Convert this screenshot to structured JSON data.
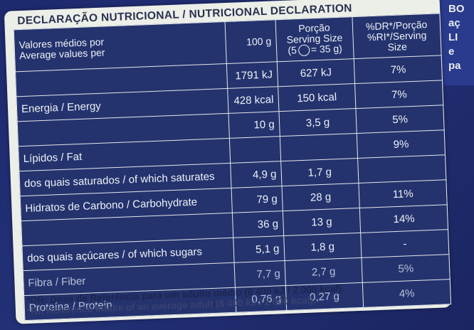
{
  "pack": {
    "side_letters": [
      "BO",
      "aç",
      "LI",
      "e",
      "pa"
    ]
  },
  "panel": {
    "title": "DECLARAÇÃO NUTRICIONAL / NUTRICIONAL DECLARATION",
    "header": {
      "label_line1": "Valores médios por",
      "label_line2": "Average values per",
      "col_100g": "100 g",
      "col_serving_line1": "Porção",
      "col_serving_line2": "Serving Size",
      "col_serving_line3_pre": "(5",
      "col_serving_line3_post": "= 35 g)",
      "col_dr_line1": "%DR*/Porção",
      "col_dr_line2": "%RI*/Serving",
      "col_dr_line3": "Size"
    },
    "rows": [
      {
        "name": "",
        "per100": "1791 kJ",
        "serving": "627 kJ",
        "dr": "7%"
      },
      {
        "name": "Energia / Energy",
        "per100": "428 kcal",
        "serving": "150 kcal",
        "dr": "7%"
      },
      {
        "name": "",
        "per100": "10 g",
        "serving": "3,5 g",
        "dr": "5%"
      },
      {
        "name": "Lípidos / Fat",
        "per100": "",
        "serving": "",
        "dr": "9%"
      },
      {
        "name": "dos quais saturados / of which saturates",
        "per100": "4,9 g",
        "serving": "1,7 g",
        "dr": ""
      },
      {
        "name": "Hidratos de Carbono / Carbohydrate",
        "per100": "79 g",
        "serving": "28 g",
        "dr": "11%"
      },
      {
        "name": "",
        "per100": "36 g",
        "serving": "13 g",
        "dr": "14%"
      },
      {
        "name": "dos quais açúcares / of which sugars",
        "per100": "5,1 g",
        "serving": "1,8 g",
        "dr": "-"
      },
      {
        "name": "Fibra / Fiber",
        "per100": "7,7 g",
        "serving": "2,7 g",
        "dr": "5%"
      },
      {
        "name": "Proteína / Protein",
        "per100": "0,76 g",
        "serving": "0,27 g",
        "dr": "4%"
      }
    ],
    "footnote_line1": "*DR: Dose de Referência para um adulto médio (8 400 kJ / 2 000 kcal).",
    "footnote_line2": "*RI: Reference Intake of an average adult (8 400 kJ / 2 000 kcal)."
  }
}
